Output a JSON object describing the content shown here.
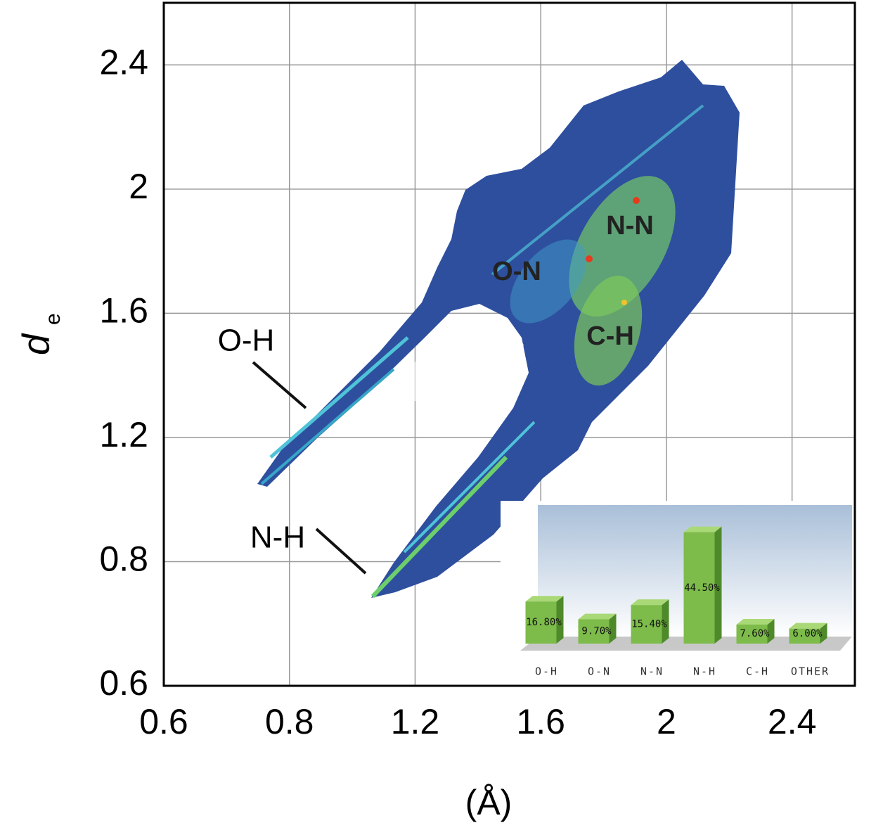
{
  "chart_data": [
    {
      "type": "fingerprint",
      "x_label": "(Å)",
      "y_label": "d",
      "y_label_sub": "e",
      "xlim": [
        0.6,
        2.6
      ],
      "xticks": [
        0.6,
        0.8,
        1.2,
        1.6,
        2.0,
        2.4
      ],
      "ylim": [
        0.6,
        2.6
      ],
      "yticks": [
        0.6,
        0.8,
        1.2,
        1.6,
        2.0,
        2.4
      ],
      "grid": true,
      "annotations": [
        "O-H",
        "N-H",
        "O-N",
        "N-N",
        "C-H"
      ]
    },
    {
      "type": "bar",
      "categories": [
        "O-H",
        "O-N",
        "N-N",
        "N-H",
        "C-H",
        "OTHER"
      ],
      "values": [
        16.8,
        9.7,
        15.4,
        44.5,
        7.6,
        6.0
      ],
      "value_labels": [
        "16.80%",
        "9.70%",
        "15.40%",
        "44.50%",
        "7.60%",
        "6.00%"
      ],
      "color": "#7dbb4a",
      "ylim": [
        0,
        50
      ]
    }
  ]
}
